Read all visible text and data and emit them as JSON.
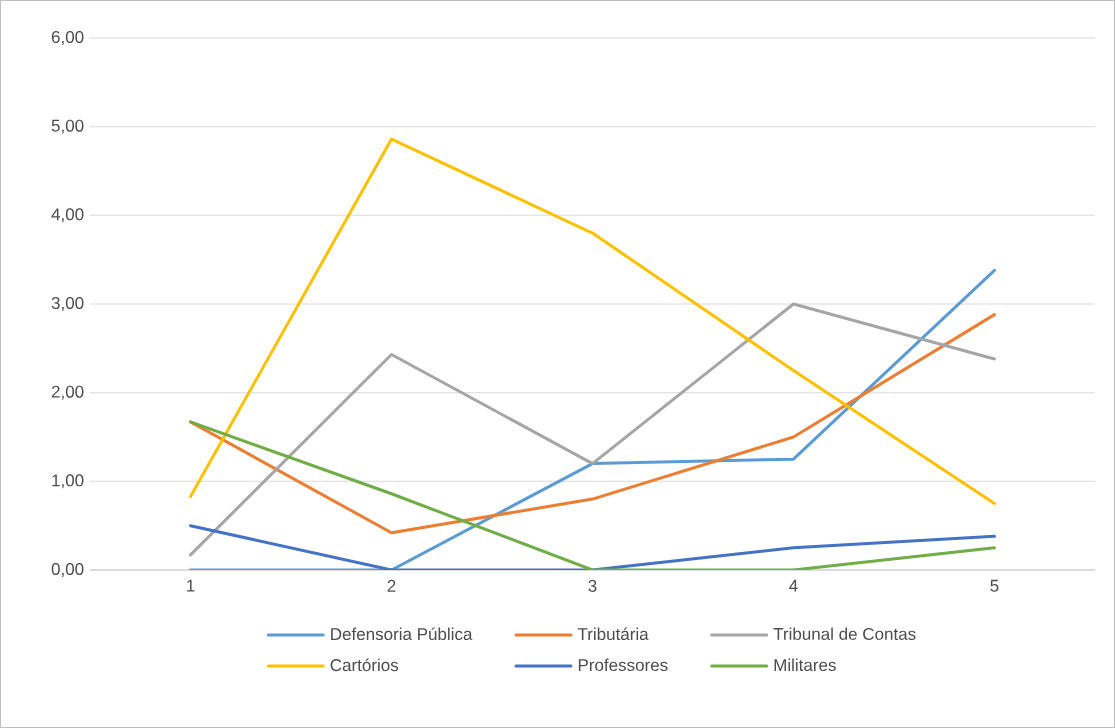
{
  "chart_data": {
    "type": "line",
    "categories": [
      "1",
      "2",
      "3",
      "4",
      "5"
    ],
    "series": [
      {
        "name": "Defensoria Pública",
        "color": "#5b9bd5",
        "values": [
          0,
          0,
          1.2,
          1.25,
          3.38
        ]
      },
      {
        "name": "Tributária",
        "color": "#ed7d31",
        "values": [
          1.67,
          0.42,
          0.8,
          1.5,
          2.88
        ]
      },
      {
        "name": "Tribunal de Contas",
        "color": "#a5a5a5",
        "values": [
          0.17,
          2.43,
          1.2,
          3.0,
          2.38
        ]
      },
      {
        "name": "Cartórios",
        "color": "#ffc000",
        "values": [
          0.83,
          4.86,
          3.8,
          2.25,
          0.75
        ]
      },
      {
        "name": "Professores",
        "color": "#4472c4",
        "values": [
          0.5,
          0,
          0,
          0.25,
          0.38
        ]
      },
      {
        "name": "Militares",
        "color": "#70ad47",
        "values": [
          1.67,
          0.86,
          0,
          0,
          0.25
        ]
      }
    ],
    "ylim": [
      0,
      6
    ],
    "yticks": [
      {
        "value": 0,
        "label": "0,00"
      },
      {
        "value": 1,
        "label": "1,00"
      },
      {
        "value": 2,
        "label": "2,00"
      },
      {
        "value": 3,
        "label": "3,00"
      },
      {
        "value": 4,
        "label": "4,00"
      },
      {
        "value": 5,
        "label": "5,00"
      },
      {
        "value": 6,
        "label": "6,00"
      }
    ],
    "grid": "y",
    "legend": "bottom",
    "marker": "none",
    "line_style": "solid"
  }
}
